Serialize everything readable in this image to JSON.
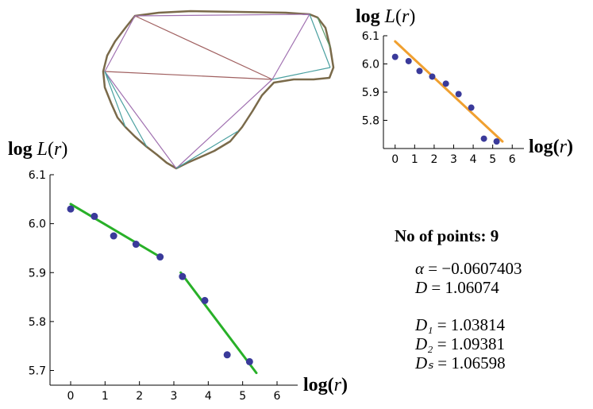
{
  "colors": {
    "points": "#3a3a9a",
    "fit_small": "#f0a030",
    "fit_main": "#28b028",
    "axis": "#000000"
  },
  "shape_panel": {
    "description_icon": "polygon-triangulation-icon"
  },
  "chart_data": [
    {
      "id": "main",
      "type": "scatter",
      "xlabel": "log(r)",
      "ylabel": "log L(r)",
      "xticks": [
        0,
        1,
        2,
        3,
        4,
        5,
        6
      ],
      "yticks": [
        5.7,
        5.8,
        5.9,
        6.0,
        6.1
      ],
      "xlim": [
        -0.6,
        6.6
      ],
      "ylim": [
        5.67,
        6.1
      ],
      "points": [
        {
          "x": 0.0,
          "y": 6.03
        },
        {
          "x": 0.69,
          "y": 6.015
        },
        {
          "x": 1.25,
          "y": 5.975
        },
        {
          "x": 1.9,
          "y": 5.958
        },
        {
          "x": 2.6,
          "y": 5.932
        },
        {
          "x": 3.25,
          "y": 5.892
        },
        {
          "x": 3.9,
          "y": 5.843
        },
        {
          "x": 4.55,
          "y": 5.732
        },
        {
          "x": 5.2,
          "y": 5.718
        }
      ],
      "fit_lines": [
        {
          "x": [
            0.0,
            2.65
          ],
          "y": [
            6.04,
            5.93
          ]
        },
        {
          "x": [
            3.2,
            5.4
          ],
          "y": [
            5.9,
            5.695
          ]
        }
      ]
    },
    {
      "id": "inset",
      "type": "scatter",
      "xlabel": "log(r)",
      "ylabel": "log L(r)",
      "xticks": [
        0,
        1,
        2,
        3,
        4,
        5,
        6
      ],
      "yticks": [
        5.8,
        5.9,
        6.0,
        6.1
      ],
      "xlim": [
        -0.6,
        6.6
      ],
      "ylim": [
        5.7,
        6.1
      ],
      "points": [
        {
          "x": 0.0,
          "y": 6.025
        },
        {
          "x": 0.69,
          "y": 6.01
        },
        {
          "x": 1.25,
          "y": 5.975
        },
        {
          "x": 1.9,
          "y": 5.955
        },
        {
          "x": 2.6,
          "y": 5.93
        },
        {
          "x": 3.25,
          "y": 5.893
        },
        {
          "x": 3.9,
          "y": 5.845
        },
        {
          "x": 4.55,
          "y": 5.735
        },
        {
          "x": 5.2,
          "y": 5.725
        }
      ],
      "fit_lines": [
        {
          "x": [
            0.0,
            5.5
          ],
          "y": [
            6.08,
            5.725
          ]
        }
      ]
    }
  ],
  "stats": {
    "title_label": "No of points:",
    "title_value": "9",
    "alpha_name": "α",
    "alpha_value": "= −0.0607403",
    "D_name": "D",
    "D_value": "=  1.06074",
    "D1_name": "D₁",
    "D1_value": "= 1.03814",
    "D2_name": "D₂",
    "D2_value": "= 1.09381",
    "Ds_name": "Dₛ",
    "Ds_value": "= 1.06598"
  }
}
